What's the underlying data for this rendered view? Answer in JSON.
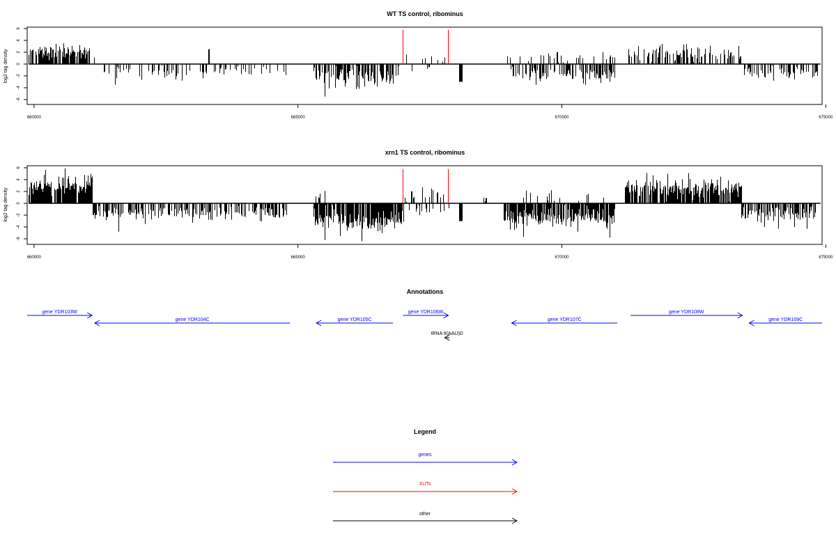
{
  "colors": {
    "genes": "#0000ff",
    "xuts": "#ff0000",
    "other": "#000000",
    "bars": "#000000",
    "axis": "#000000"
  },
  "chart_data": [
    {
      "type": "bar",
      "title": "WT TS control, ribominus",
      "ylabel": "log2 tag density",
      "xlim": [
        659870,
        674930
      ],
      "ylim": [
        -6,
        6
      ],
      "xticks": [
        660000,
        665000,
        670000,
        675000
      ],
      "yticks": [
        -6,
        -4,
        -2,
        0,
        2,
        4,
        6
      ],
      "grid": false,
      "track_x": [
        659900,
        674900
      ],
      "regions": [
        {
          "strand": "plus",
          "x": [
            659900,
            661050
          ],
          "density": 0.75,
          "mean": 2.2,
          "sd": 0.6,
          "max": 3.5,
          "spikes": [
            [
              660560,
              3.5
            ],
            [
              660860,
              3.2
            ],
            [
              661000,
              2.1
            ],
            [
              661140,
              1.1
            ]
          ]
        },
        {
          "strand": "minus",
          "x": [
            661250,
            664800
          ],
          "density": 0.25,
          "mean": 1.4,
          "sd": 0.6,
          "max": 3.6,
          "spikes": [
            [
              661530,
              -3.5
            ],
            [
              662800,
              -2.8
            ],
            [
              663200,
              -2.4
            ]
          ]
        },
        {
          "strand": "plus",
          "x": [
            663300,
            663320
          ],
          "density": 1.0,
          "mean": 2.5,
          "sd": 0.0,
          "max": 2.5,
          "spikes": [
            [
              663310,
              2.5
            ]
          ]
        },
        {
          "strand": "minus",
          "x": [
            665300,
            666900
          ],
          "density": 0.65,
          "mean": 2.0,
          "sd": 0.8,
          "max": 5.5,
          "spikes": [
            [
              665500,
              -5.5
            ],
            [
              665700,
              -4.0
            ],
            [
              666100,
              -4.2
            ],
            [
              666500,
              -3.8
            ]
          ]
        },
        {
          "strand": "plus",
          "x": [
            667100,
            667800
          ],
          "density": 0.08,
          "mean": 0.8,
          "sd": 0.3,
          "max": 1.6,
          "spikes": [
            [
              667050,
              1.6
            ]
          ]
        },
        {
          "strand": "minus",
          "x": [
            666950,
            667700
          ],
          "density": 0.06,
          "mean": 0.6,
          "sd": 0.3,
          "max": 1.2,
          "spikes": [
            [
              667150,
              -1.2
            ],
            [
              667450,
              -0.8
            ]
          ]
        },
        {
          "strand": "minus",
          "x": [
            668050,
            668100
          ],
          "density": 1.0,
          "mean": 3.0,
          "sd": 0.0,
          "max": 3.0,
          "spikes": [
            [
              668080,
              -3.0
            ]
          ]
        },
        {
          "strand": "plus",
          "x": [
            668900,
            671000
          ],
          "density": 0.1,
          "mean": 1.0,
          "sd": 0.5,
          "max": 2.0,
          "spikes": [
            [
              669200,
              1.3
            ],
            [
              669600,
              1.5
            ],
            [
              669900,
              2.0
            ],
            [
              670600,
              1.3
            ]
          ]
        },
        {
          "strand": "minus",
          "x": [
            669000,
            671000
          ],
          "density": 0.45,
          "mean": 1.7,
          "sd": 0.7,
          "max": 3.5,
          "spikes": [
            [
              669500,
              -3.5
            ],
            [
              670400,
              -3.3
            ],
            [
              670900,
              -3.0
            ]
          ]
        },
        {
          "strand": "plus",
          "x": [
            671250,
            673400
          ],
          "density": 0.5,
          "mean": 1.7,
          "sd": 0.7,
          "max": 3.4,
          "spikes": [
            [
              671900,
              3.4
            ],
            [
              672300,
              3.3
            ],
            [
              672800,
              3.1
            ]
          ]
        },
        {
          "strand": "minus",
          "x": [
            673450,
            674850
          ],
          "density": 0.4,
          "mean": 1.3,
          "sd": 0.6,
          "max": 2.8,
          "spikes": [
            [
              674000,
              -2.8
            ],
            [
              674400,
              -2.6
            ],
            [
              674750,
              -2.3
            ]
          ]
        }
      ],
      "xut_marks": [
        [
          666980,
          5.8
        ],
        [
          667840,
          5.8
        ]
      ]
    },
    {
      "type": "bar",
      "title": "xrn1 TS control, ribominus",
      "ylabel": "log2 tag density",
      "xlim": [
        659870,
        674930
      ],
      "ylim": [
        -6,
        6
      ],
      "xticks": [
        660000,
        665000,
        670000,
        675000
      ],
      "yticks": [
        -6,
        -4,
        -2,
        0,
        2,
        4,
        6
      ],
      "grid": false,
      "track_x": [
        659900,
        674900
      ],
      "regions": [
        {
          "strand": "plus",
          "x": [
            659900,
            661100
          ],
          "density": 0.9,
          "mean": 2.8,
          "sd": 0.9,
          "max": 5.9,
          "spikes": [
            [
              659950,
              3.4
            ],
            [
              660580,
              5.9
            ],
            [
              660950,
              4.8
            ],
            [
              661050,
              3.5
            ]
          ]
        },
        {
          "strand": "minus",
          "x": [
            661100,
            664800
          ],
          "density": 0.55,
          "mean": 1.7,
          "sd": 0.6,
          "max": 4.8,
          "spikes": [
            [
              661600,
              -4.8
            ],
            [
              662100,
              -3.5
            ],
            [
              663000,
              -3.3
            ]
          ]
        },
        {
          "strand": "minus",
          "x": [
            665300,
            667000
          ],
          "density": 0.9,
          "mean": 2.8,
          "sd": 1.0,
          "max": 6.4,
          "spikes": [
            [
              665500,
              -6.2
            ],
            [
              666200,
              -6.4
            ],
            [
              665800,
              -5.5
            ]
          ]
        },
        {
          "strand": "plus",
          "x": [
            665300,
            665500
          ],
          "density": 0.3,
          "mean": 1.3,
          "sd": 0.4,
          "max": 2.1,
          "spikes": [
            [
              665500,
              2.1
            ]
          ]
        },
        {
          "strand": "plus",
          "x": [
            667000,
            667900
          ],
          "density": 0.15,
          "mean": 1.2,
          "sd": 0.6,
          "max": 2.7,
          "spikes": [
            [
              667150,
              2.0
            ],
            [
              667350,
              2.7
            ],
            [
              667550,
              2.2
            ],
            [
              667750,
              1.5
            ]
          ]
        },
        {
          "strand": "minus",
          "x": [
            667000,
            667900
          ],
          "density": 0.12,
          "mean": 1.0,
          "sd": 0.5,
          "max": 2.0,
          "spikes": [
            [
              667300,
              -2.0
            ],
            [
              667700,
              -1.5
            ]
          ]
        },
        {
          "strand": "minus",
          "x": [
            668050,
            668100
          ],
          "density": 1.0,
          "mean": 3.0,
          "sd": 0.0,
          "max": 3.0,
          "spikes": [
            [
              668080,
              -3.0
            ]
          ]
        },
        {
          "strand": "plus",
          "x": [
            668500,
            668600
          ],
          "density": 0.3,
          "mean": 0.6,
          "sd": 0.2,
          "max": 1.0,
          "spikes": [
            [
              668550,
              0.9
            ]
          ]
        },
        {
          "strand": "plus",
          "x": [
            668900,
            670900
          ],
          "density": 0.1,
          "mean": 1.0,
          "sd": 0.5,
          "max": 2.2,
          "spikes": [
            [
              669400,
              1.8
            ],
            [
              669800,
              2.2
            ],
            [
              670500,
              1.6
            ]
          ]
        },
        {
          "strand": "minus",
          "x": [
            668900,
            671000
          ],
          "density": 0.85,
          "mean": 2.5,
          "sd": 0.9,
          "max": 5.8,
          "spikes": [
            [
              669100,
              -4.5
            ],
            [
              670900,
              -5.8
            ],
            [
              670300,
              -4.8
            ]
          ]
        },
        {
          "strand": "plus",
          "x": [
            671200,
            673400
          ],
          "density": 0.85,
          "mean": 2.5,
          "sd": 0.9,
          "max": 5.2,
          "spikes": [
            [
              671600,
              5.1
            ],
            [
              672000,
              5.0
            ],
            [
              672400,
              5.1
            ],
            [
              673000,
              4.5
            ]
          ]
        },
        {
          "strand": "minus",
          "x": [
            673400,
            674800
          ],
          "density": 0.65,
          "mean": 1.8,
          "sd": 0.8,
          "max": 4.3,
          "spikes": [
            [
              674100,
              -4.3
            ],
            [
              674400,
              -4.0
            ]
          ]
        }
      ],
      "xut_marks": [
        [
          666980,
          5.8
        ],
        [
          667840,
          5.8
        ]
      ]
    }
  ],
  "annotations": {
    "title": "Annotations",
    "features": [
      {
        "label": "gene YDR103W",
        "kind": "gene",
        "strand": "+",
        "start": 659400,
        "end": 661100,
        "row": 0
      },
      {
        "label": "gene YDR104C",
        "kind": "gene",
        "strand": "-",
        "start": 661150,
        "end": 664850,
        "row": 1
      },
      {
        "label": "gene YDR105C",
        "kind": "gene",
        "strand": "-",
        "start": 665350,
        "end": 666800,
        "row": 1
      },
      {
        "label": "gene YDR106W",
        "kind": "gene",
        "strand": "+",
        "start": 666990,
        "end": 667850,
        "row": 0
      },
      {
        "label": "gene YDR107C",
        "kind": "gene",
        "strand": "-",
        "start": 669050,
        "end": 671050,
        "row": 1
      },
      {
        "label": "gene YDR108W",
        "kind": "gene",
        "strand": "+",
        "start": 671300,
        "end": 673420,
        "row": 0
      },
      {
        "label": "gene YDR109C",
        "kind": "gene",
        "strand": "-",
        "start": 673550,
        "end": 676000,
        "row": 1
      },
      {
        "label": "tRNA tI(AAU)D",
        "kind": "other",
        "strand": "-",
        "start": 667780,
        "end": 667870,
        "row": 2
      }
    ]
  },
  "legend": {
    "title": "Legend",
    "items": [
      {
        "label": "genes",
        "kind": "genes"
      },
      {
        "label": "XUTs",
        "kind": "xuts"
      },
      {
        "label": "other",
        "kind": "other"
      }
    ]
  }
}
